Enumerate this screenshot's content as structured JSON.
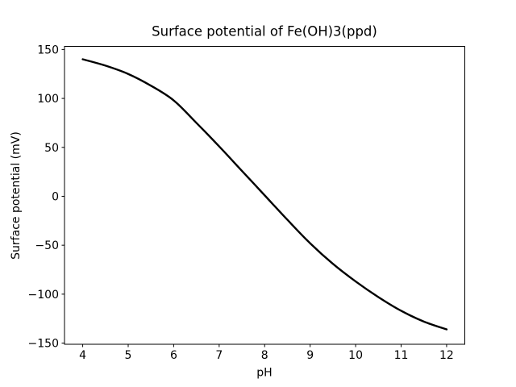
{
  "figure": {
    "background": "#ffffff",
    "frame_color": "#000000"
  },
  "chart_data": {
    "type": "line",
    "title": "Surface potential of Fe(OH)3(ppd)",
    "xlabel": "pH",
    "ylabel": "Surface potential (mV)",
    "xlim": [
      3.6,
      12.4
    ],
    "ylim": [
      -151.2,
      153.2
    ],
    "xticks": [
      4,
      5,
      6,
      7,
      8,
      9,
      10,
      11,
      12
    ],
    "yticks": [
      -150,
      -100,
      -50,
      0,
      50,
      100,
      150
    ],
    "grid": false,
    "legend_position": "none",
    "series": [
      {
        "name": "surface-potential-vs-pH",
        "color": "#000000",
        "line_width": 2.4,
        "x": [
          4,
          4.5,
          5,
          5.5,
          6,
          6.5,
          7,
          7.5,
          8,
          8.5,
          9,
          9.5,
          10,
          10.5,
          11,
          11.5,
          12
        ],
        "y": [
          140,
          133.5,
          125,
          113,
          98,
          75,
          51,
          26,
          1,
          -24,
          -48,
          -69,
          -87,
          -103,
          -117,
          -128,
          -136
        ]
      }
    ]
  }
}
